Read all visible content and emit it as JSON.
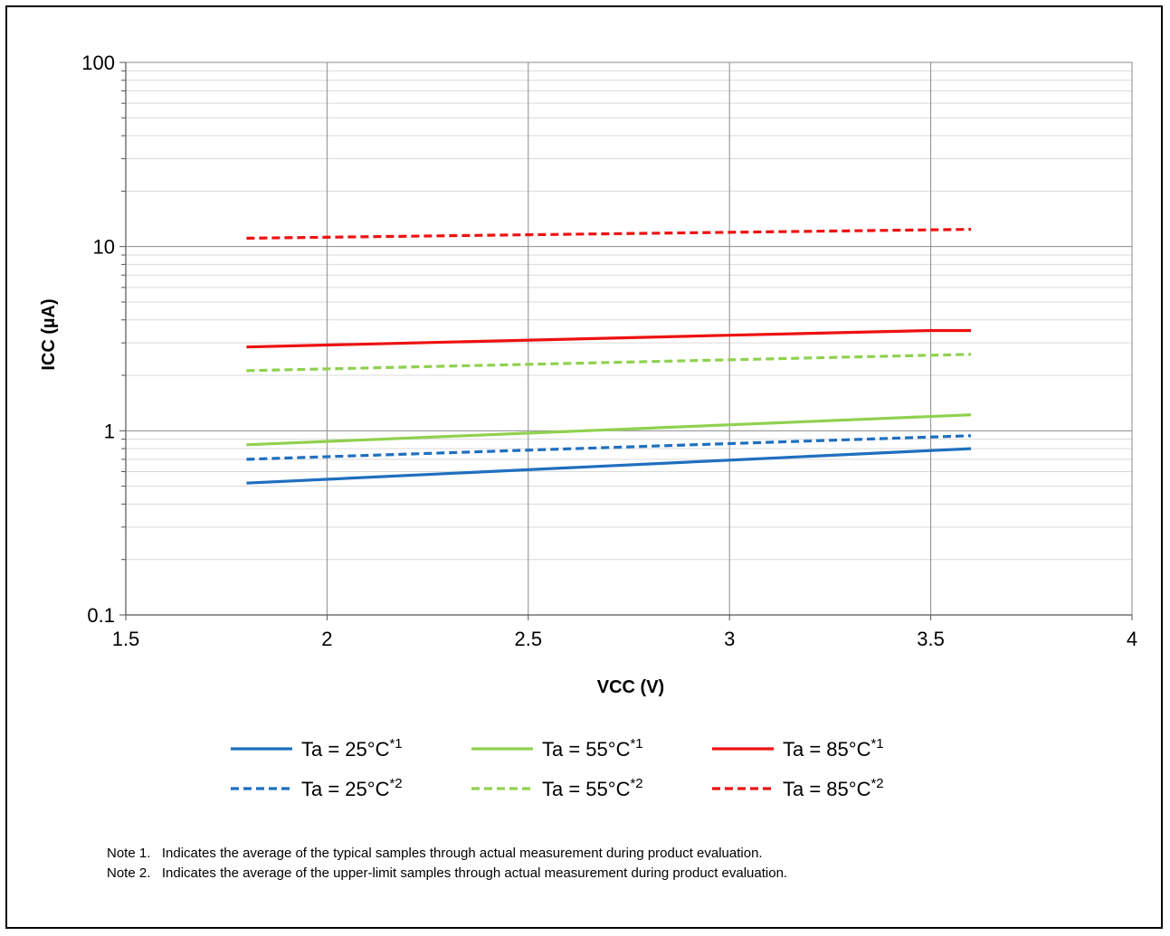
{
  "chart_data": {
    "type": "line",
    "xlabel": "VCC (V)",
    "ylabel": "ICC (µA)",
    "xlim": [
      1.5,
      4
    ],
    "ylim": [
      0.1,
      100
    ],
    "yscale": "log",
    "grid": true,
    "legend_placement": "bottom",
    "x_ticks": [
      "1.5",
      "2",
      "2.5",
      "3",
      "3.5",
      "4"
    ],
    "y_ticks": [
      "0.1",
      "1",
      "10",
      "100"
    ],
    "series": [
      {
        "name": "Ta = 25°C",
        "sup": "*1",
        "color": "#1f6fbf",
        "dash": "solid",
        "x": [
          1.8,
          3.6
        ],
        "y": [
          0.52,
          0.8
        ]
      },
      {
        "name": "Ta = 55°C",
        "sup": "*1",
        "color": "#8fd14f",
        "dash": "solid",
        "x": [
          1.8,
          3.6
        ],
        "y": [
          0.84,
          1.22
        ]
      },
      {
        "name": "Ta = 85°C",
        "sup": "*1",
        "color": "#ee1111",
        "dash": "solid",
        "x": [
          1.8,
          3.0,
          3.5,
          3.6
        ],
        "y": [
          2.85,
          3.3,
          3.5,
          3.5
        ]
      },
      {
        "name": "Ta = 25°C",
        "sup": "*2",
        "color": "#1f6fbf",
        "dash": "dashed",
        "x": [
          1.8,
          3.6
        ],
        "y": [
          0.7,
          0.94
        ]
      },
      {
        "name": "Ta = 55°C",
        "sup": "*2",
        "color": "#8fd14f",
        "dash": "dashed",
        "x": [
          1.8,
          3.6
        ],
        "y": [
          2.12,
          2.6
        ]
      },
      {
        "name": "Ta = 85°C",
        "sup": "*2",
        "color": "#ee1111",
        "dash": "dashed",
        "x": [
          1.8,
          3.6
        ],
        "y": [
          11.1,
          12.4
        ]
      }
    ]
  },
  "notes": [
    "Note 1.   Indicates the average of the typical samples through actual measurement during product evaluation.",
    "Note 2.   Indicates the average of the upper-limit samples through actual measurement during product evaluation."
  ]
}
